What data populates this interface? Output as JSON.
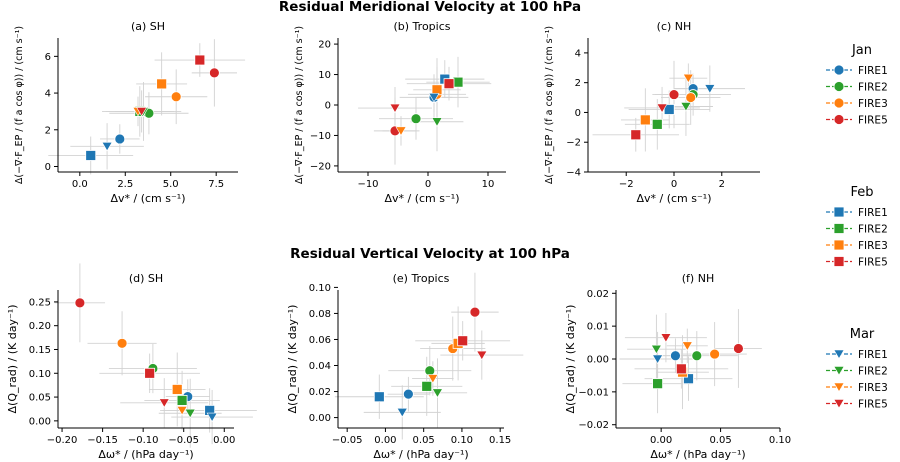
{
  "figure": {
    "row_titles": [
      "Residual Meridional Velocity at 100 hPa",
      "Residual Vertical Velocity at 100 hPa"
    ],
    "x_label_v": "Δv* / (cm s⁻¹)",
    "y_label_v": "Δ(−∇·F_EP / (f a cos φ)) / (cm s⁻¹)",
    "x_label_w": "Δω* / (hPa day⁻¹)",
    "y_label_w": "Δ(Q_rad) / (K day⁻¹)"
  },
  "legend": {
    "groups": [
      {
        "month": "Jan",
        "marker": "circle"
      },
      {
        "month": "Feb",
        "marker": "square"
      },
      {
        "month": "Mar",
        "marker": "triangle-down"
      }
    ],
    "experiments": [
      "FIRE1",
      "FIRE2",
      "FIRE3",
      "FIRE5"
    ],
    "colors": {
      "FIRE1": "#1f77b4",
      "FIRE2": "#2ca02c",
      "FIRE3": "#ff7f0e",
      "FIRE5": "#d62728"
    }
  },
  "chart_data": [
    {
      "type": "scatter",
      "title": "(a) SH",
      "xlim": [
        -1.2,
        8.7
      ],
      "ylim": [
        -0.3,
        7.0
      ],
      "xticks": [
        0.0,
        2.5,
        5.0,
        7.5
      ],
      "xticklabels": [
        "0.0",
        "2.5",
        "5.0",
        "7.5"
      ],
      "yticks": [
        0,
        2,
        4,
        6
      ],
      "yticklabels": [
        "0",
        "2",
        "4",
        "6"
      ],
      "points": [
        {
          "exp": "FIRE1",
          "month": "Jan",
          "x": 2.2,
          "y": 1.5
        },
        {
          "exp": "FIRE2",
          "month": "Jan",
          "x": 3.8,
          "y": 2.9
        },
        {
          "exp": "FIRE3",
          "month": "Jan",
          "x": 5.3,
          "y": 3.8
        },
        {
          "exp": "FIRE5",
          "month": "Jan",
          "x": 7.4,
          "y": 5.1
        },
        {
          "exp": "FIRE1",
          "month": "Feb",
          "x": 0.6,
          "y": 0.6
        },
        {
          "exp": "FIRE2",
          "month": "Feb",
          "x": 3.3,
          "y": 3.0
        },
        {
          "exp": "FIRE3",
          "month": "Feb",
          "x": 4.5,
          "y": 4.5
        },
        {
          "exp": "FIRE5",
          "month": "Feb",
          "x": 6.6,
          "y": 5.8
        },
        {
          "exp": "FIRE1",
          "month": "Mar",
          "x": 1.5,
          "y": 1.1
        },
        {
          "exp": "FIRE2",
          "month": "Mar",
          "x": 3.5,
          "y": 3.0
        },
        {
          "exp": "FIRE3",
          "month": "Mar",
          "x": 3.2,
          "y": 3.0
        },
        {
          "exp": "FIRE5",
          "month": "Mar",
          "x": 3.4,
          "y": 3.0
        }
      ]
    },
    {
      "type": "scatter",
      "title": "(b) Tropics",
      "xlim": [
        -15,
        13
      ],
      "ylim": [
        -22,
        22
      ],
      "xticks": [
        -10,
        0,
        10
      ],
      "xticklabels": [
        "−10",
        "0",
        "10"
      ],
      "yticks": [
        -20,
        -10,
        0,
        10,
        20
      ],
      "yticklabels": [
        "−20",
        "−10",
        "0",
        "10",
        "20"
      ],
      "points": [
        {
          "exp": "FIRE1",
          "month": "Jan",
          "x": 1.0,
          "y": 2.5
        },
        {
          "exp": "FIRE2",
          "month": "Jan",
          "x": -2.0,
          "y": -4.5
        },
        {
          "exp": "FIRE3",
          "month": "Jan",
          "x": 1.5,
          "y": 3.5
        },
        {
          "exp": "FIRE5",
          "month": "Jan",
          "x": -5.5,
          "y": -8.5
        },
        {
          "exp": "FIRE1",
          "month": "Feb",
          "x": 2.8,
          "y": 8.5
        },
        {
          "exp": "FIRE2",
          "month": "Feb",
          "x": 5.0,
          "y": 7.5
        },
        {
          "exp": "FIRE3",
          "month": "Feb",
          "x": 1.5,
          "y": 5.0
        },
        {
          "exp": "FIRE5",
          "month": "Feb",
          "x": 3.5,
          "y": 7.0
        },
        {
          "exp": "FIRE1",
          "month": "Mar",
          "x": 1.0,
          "y": 2.5
        },
        {
          "exp": "FIRE2",
          "month": "Mar",
          "x": 1.5,
          "y": -5.5
        },
        {
          "exp": "FIRE3",
          "month": "Mar",
          "x": -4.5,
          "y": -8.5
        },
        {
          "exp": "FIRE5",
          "month": "Mar",
          "x": -5.5,
          "y": -1.0
        }
      ]
    },
    {
      "type": "scatter",
      "title": "(c) NH",
      "xlim": [
        -3.6,
        3.6
      ],
      "ylim": [
        -4,
        5
      ],
      "xticks": [
        -2,
        0,
        2
      ],
      "xticklabels": [
        "−2",
        "0",
        "2"
      ],
      "yticks": [
        -4,
        -2,
        0,
        2,
        4
      ],
      "yticklabels": [
        "−4",
        "−2",
        "0",
        "2",
        "4"
      ],
      "points": [
        {
          "exp": "FIRE1",
          "month": "Jan",
          "x": 0.8,
          "y": 1.6
        },
        {
          "exp": "FIRE2",
          "month": "Jan",
          "x": 0.8,
          "y": 1.2
        },
        {
          "exp": "FIRE3",
          "month": "Jan",
          "x": 0.7,
          "y": 1.0
        },
        {
          "exp": "FIRE5",
          "month": "Jan",
          "x": 0.0,
          "y": 1.2
        },
        {
          "exp": "FIRE1",
          "month": "Feb",
          "x": -0.2,
          "y": 0.2
        },
        {
          "exp": "FIRE2",
          "month": "Feb",
          "x": -0.7,
          "y": -0.8
        },
        {
          "exp": "FIRE3",
          "month": "Feb",
          "x": -1.2,
          "y": -0.5
        },
        {
          "exp": "FIRE5",
          "month": "Feb",
          "x": -1.6,
          "y": -1.5
        },
        {
          "exp": "FIRE1",
          "month": "Mar",
          "x": 1.5,
          "y": 1.6
        },
        {
          "exp": "FIRE2",
          "month": "Mar",
          "x": 0.5,
          "y": 0.4
        },
        {
          "exp": "FIRE3",
          "month": "Mar",
          "x": 0.6,
          "y": 2.3
        },
        {
          "exp": "FIRE5",
          "month": "Mar",
          "x": -0.5,
          "y": 0.3
        }
      ]
    },
    {
      "type": "scatter",
      "title": "(d) SH",
      "xlim": [
        -0.205,
        0.012
      ],
      "ylim": [
        -0.015,
        0.275
      ],
      "xticks": [
        -0.2,
        -0.15,
        -0.1,
        -0.05,
        0.0
      ],
      "xticklabels": [
        "−0.20",
        "−0.15",
        "−0.10",
        "−0.05",
        "0.00"
      ],
      "yticks": [
        0.0,
        0.05,
        0.1,
        0.15,
        0.2,
        0.25
      ],
      "yticklabels": [
        "0.00",
        "0.05",
        "0.10",
        "0.15",
        "0.20",
        "0.25"
      ],
      "points": [
        {
          "exp": "FIRE1",
          "month": "Jan",
          "x": -0.045,
          "y": 0.051
        },
        {
          "exp": "FIRE2",
          "month": "Jan",
          "x": -0.088,
          "y": 0.11
        },
        {
          "exp": "FIRE3",
          "month": "Jan",
          "x": -0.126,
          "y": 0.163
        },
        {
          "exp": "FIRE5",
          "month": "Jan",
          "x": -0.178,
          "y": 0.248
        },
        {
          "exp": "FIRE1",
          "month": "Feb",
          "x": -0.018,
          "y": 0.022
        },
        {
          "exp": "FIRE2",
          "month": "Feb",
          "x": -0.052,
          "y": 0.043
        },
        {
          "exp": "FIRE3",
          "month": "Feb",
          "x": -0.058,
          "y": 0.066
        },
        {
          "exp": "FIRE5",
          "month": "Feb",
          "x": -0.092,
          "y": 0.1
        },
        {
          "exp": "FIRE1",
          "month": "Mar",
          "x": -0.015,
          "y": 0.008
        },
        {
          "exp": "FIRE2",
          "month": "Mar",
          "x": -0.042,
          "y": 0.016
        },
        {
          "exp": "FIRE3",
          "month": "Mar",
          "x": -0.052,
          "y": 0.022
        },
        {
          "exp": "FIRE5",
          "month": "Mar",
          "x": -0.074,
          "y": 0.038
        }
      ]
    },
    {
      "type": "scatter",
      "title": "(e) Tropics",
      "xlim": [
        -0.062,
        0.155
      ],
      "ylim": [
        -0.008,
        0.098
      ],
      "xticks": [
        -0.05,
        0.0,
        0.05,
        0.1,
        0.15
      ],
      "xticklabels": [
        "−0.05",
        "0.00",
        "0.05",
        "0.10",
        "0.15"
      ],
      "yticks": [
        0.0,
        0.02,
        0.04,
        0.06,
        0.08,
        0.1
      ],
      "yticklabels": [
        "0.00",
        "0.02",
        "0.04",
        "0.06",
        "0.08",
        "0.10"
      ],
      "points": [
        {
          "exp": "FIRE1",
          "month": "Jan",
          "x": 0.03,
          "y": 0.018
        },
        {
          "exp": "FIRE2",
          "month": "Jan",
          "x": 0.058,
          "y": 0.036
        },
        {
          "exp": "FIRE3",
          "month": "Jan",
          "x": 0.088,
          "y": 0.053
        },
        {
          "exp": "FIRE5",
          "month": "Jan",
          "x": 0.117,
          "y": 0.081
        },
        {
          "exp": "FIRE1",
          "month": "Feb",
          "x": -0.008,
          "y": 0.016
        },
        {
          "exp": "FIRE2",
          "month": "Feb",
          "x": 0.054,
          "y": 0.024
        },
        {
          "exp": "FIRE3",
          "month": "Feb",
          "x": 0.095,
          "y": 0.057
        },
        {
          "exp": "FIRE5",
          "month": "Feb",
          "x": 0.101,
          "y": 0.059
        },
        {
          "exp": "FIRE1",
          "month": "Mar",
          "x": 0.022,
          "y": 0.004
        },
        {
          "exp": "FIRE2",
          "month": "Mar",
          "x": 0.068,
          "y": 0.019
        },
        {
          "exp": "FIRE3",
          "month": "Mar",
          "x": 0.062,
          "y": 0.03
        },
        {
          "exp": "FIRE5",
          "month": "Mar",
          "x": 0.126,
          "y": 0.048
        }
      ]
    },
    {
      "type": "scatter",
      "title": "(f) NH",
      "xlim": [
        -0.038,
        0.1
      ],
      "ylim": [
        -0.021,
        0.021
      ],
      "xticks": [
        0.0,
        0.05,
        0.1
      ],
      "xticklabels": [
        "0.00",
        "0.05",
        "0.10"
      ],
      "yticks": [
        -0.02,
        -0.01,
        0.0,
        0.01,
        0.02
      ],
      "yticklabels": [
        "−0.02",
        "−0.01",
        "0.00",
        "0.01",
        "0.02"
      ],
      "points": [
        {
          "exp": "FIRE1",
          "month": "Jan",
          "x": 0.012,
          "y": 0.001
        },
        {
          "exp": "FIRE2",
          "month": "Jan",
          "x": 0.03,
          "y": 0.001
        },
        {
          "exp": "FIRE3",
          "month": "Jan",
          "x": 0.045,
          "y": 0.0015
        },
        {
          "exp": "FIRE5",
          "month": "Jan",
          "x": 0.065,
          "y": 0.0032
        },
        {
          "exp": "FIRE1",
          "month": "Feb",
          "x": 0.023,
          "y": -0.006
        },
        {
          "exp": "FIRE2",
          "month": "Feb",
          "x": -0.003,
          "y": -0.0075
        },
        {
          "exp": "FIRE3",
          "month": "Feb",
          "x": 0.018,
          "y": -0.004
        },
        {
          "exp": "FIRE5",
          "month": "Feb",
          "x": 0.017,
          "y": -0.003
        },
        {
          "exp": "FIRE1",
          "month": "Mar",
          "x": -0.003,
          "y": 0.0
        },
        {
          "exp": "FIRE2",
          "month": "Mar",
          "x": -0.004,
          "y": 0.003
        },
        {
          "exp": "FIRE3",
          "month": "Mar",
          "x": 0.022,
          "y": 0.004
        },
        {
          "exp": "FIRE5",
          "month": "Mar",
          "x": 0.004,
          "y": 0.0065
        }
      ]
    }
  ]
}
